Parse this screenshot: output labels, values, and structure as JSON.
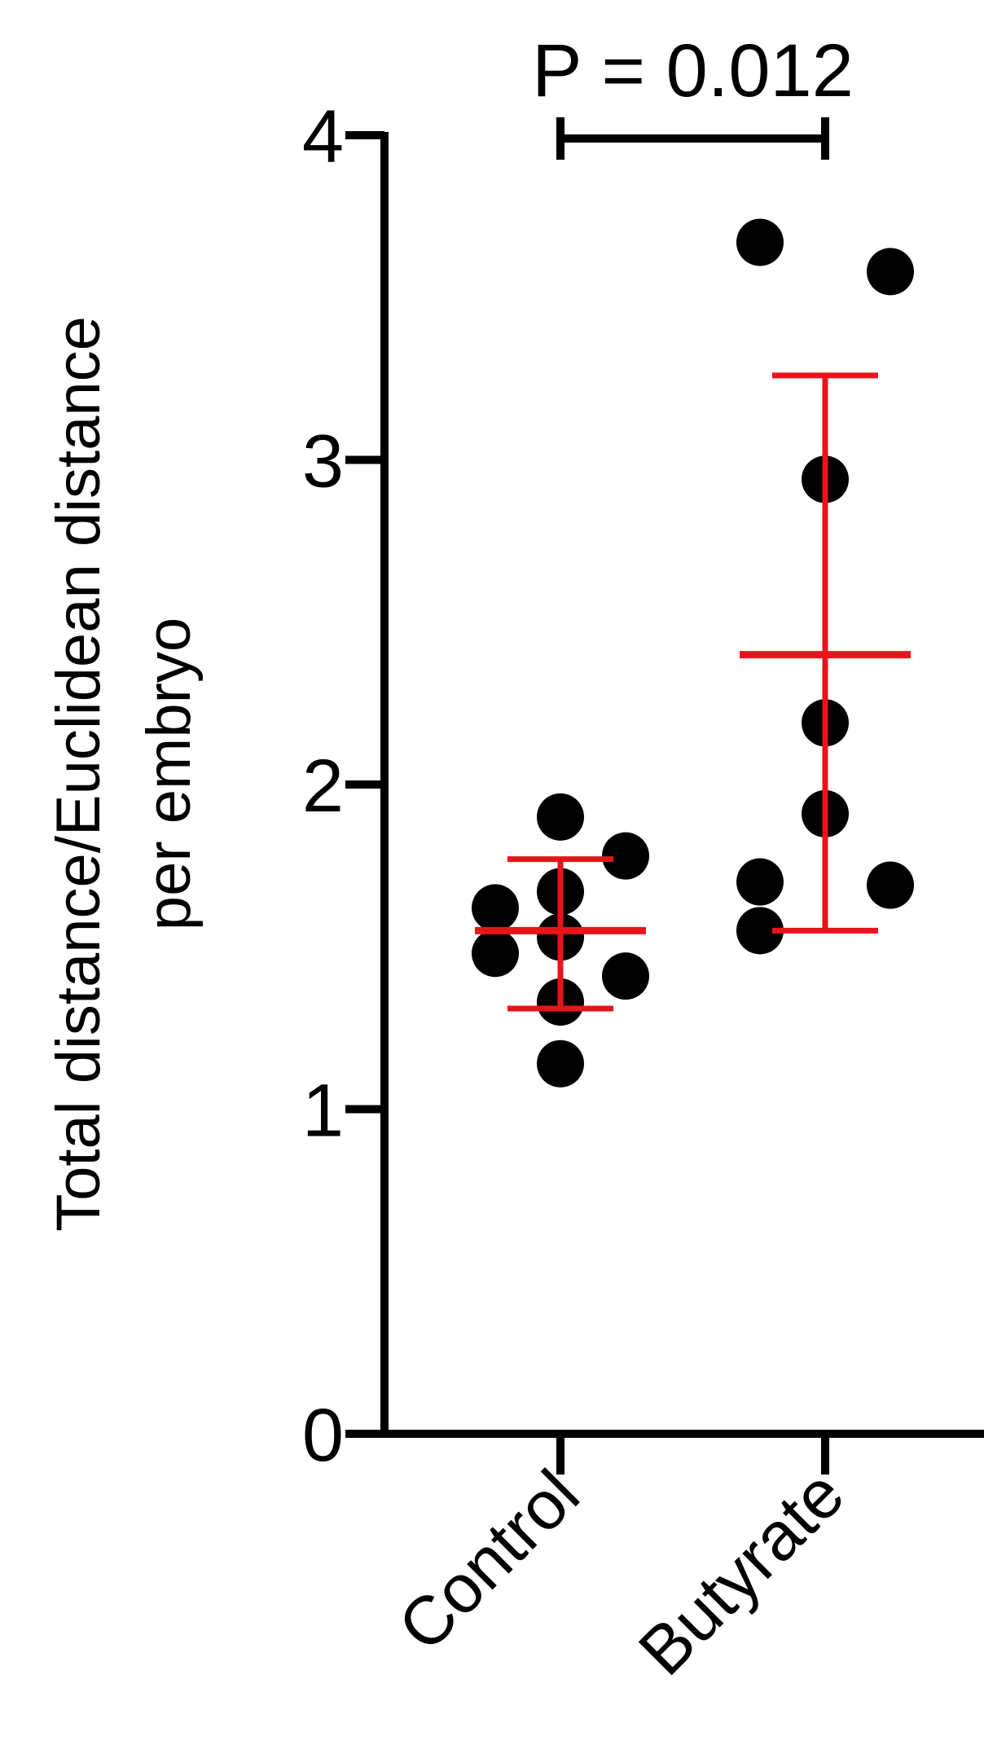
{
  "chart_data": {
    "type": "scatter",
    "ylabel_lines": [
      "Total distance/Euclidean distance",
      "per embryo"
    ],
    "ylim": [
      0,
      4
    ],
    "yticks": [
      "0",
      "1",
      "2",
      "3",
      "4"
    ],
    "categories": [
      "Control",
      "Butyrate"
    ],
    "grid": false,
    "colors": {
      "points": "#000000",
      "summary": "#e8141c",
      "axis": "#000000"
    },
    "series": [
      {
        "category": "Control",
        "values": [
          1.9,
          1.62,
          1.67,
          1.78,
          1.48,
          1.53,
          1.41,
          1.33,
          1.14
        ],
        "mean": 1.55,
        "sd_low": 1.31,
        "sd_high": 1.77
      },
      {
        "category": "Butyrate",
        "values": [
          3.67,
          3.58,
          2.94,
          2.19,
          1.91,
          1.7,
          1.69,
          1.55
        ],
        "mean": 2.4,
        "sd_low": 1.55,
        "sd_high": 3.26
      }
    ],
    "annotation": {
      "text": "P = 0.012",
      "between": [
        "Control",
        "Butyrate"
      ]
    }
  }
}
